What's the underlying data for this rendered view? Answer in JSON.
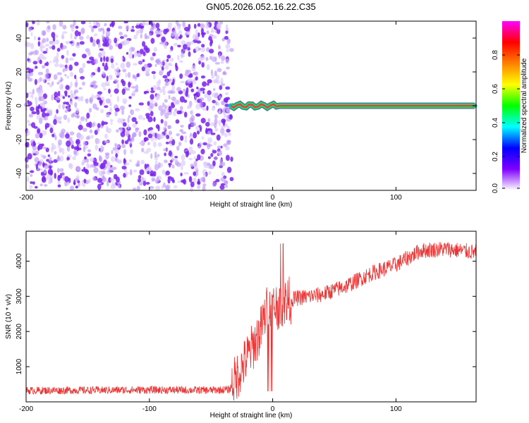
{
  "title": "GN05.2026.052.16.22.C35",
  "chart_data": [
    {
      "type": "heatmap",
      "name": "spectrogram",
      "xlabel": "Height of straight line (km)",
      "ylabel": "Frequency (Hz)",
      "xlim": [
        -200,
        165
      ],
      "ylim": [
        -50,
        50
      ],
      "xticks": [
        -200,
        -100,
        0,
        100
      ],
      "xtick_labels": [
        "-200",
        "-100",
        "0",
        "100"
      ],
      "yticks": [
        -40,
        -20,
        0,
        20,
        40
      ],
      "ytick_labels": [
        "-40",
        "-20",
        "0",
        "20",
        "40"
      ],
      "noise_region_x": [
        -200,
        -32
      ],
      "signal_start_x": -34,
      "signal_freq_hz": 0,
      "colorbar": {
        "label": "Normalized spectral amplitude",
        "range": [
          0,
          1
        ],
        "ticks": [
          0.0,
          0.2,
          0.4,
          0.6,
          0.8
        ],
        "tick_labels": [
          "0.0",
          "0.2",
          "0.4",
          "0.6",
          "0.8"
        ],
        "colormap": [
          "#ffffff",
          "#7f00ff",
          "#0000ff",
          "#00ffff",
          "#00ff00",
          "#ffff00",
          "#ff8000",
          "#ff0000",
          "#ff00ff"
        ]
      },
      "grid": false
    },
    {
      "type": "line",
      "name": "snr",
      "xlabel": "Height of straight line (km)",
      "ylabel": "SNR (10 * v/v)",
      "xlim": [
        -200,
        165
      ],
      "ylim": [
        0,
        4850
      ],
      "xticks": [
        -200,
        -100,
        0,
        100
      ],
      "xtick_labels": [
        "-200",
        "-100",
        "0",
        "100"
      ],
      "yticks": [
        1000,
        2000,
        3000,
        4000
      ],
      "ytick_labels": [
        "1000",
        "2000",
        "3000",
        "4000"
      ],
      "color": "#ee3333",
      "x": [
        -200,
        -150,
        -100,
        -50,
        -35,
        -20,
        -10,
        -5,
        0,
        5,
        10,
        20,
        40,
        60,
        80,
        100,
        120,
        140,
        165
      ],
      "values": [
        320,
        330,
        340,
        330,
        350,
        1300,
        2000,
        2600,
        2700,
        2750,
        2850,
        2950,
        3050,
        3300,
        3650,
        3900,
        4300,
        4350,
        4250
      ],
      "grid": false
    }
  ]
}
